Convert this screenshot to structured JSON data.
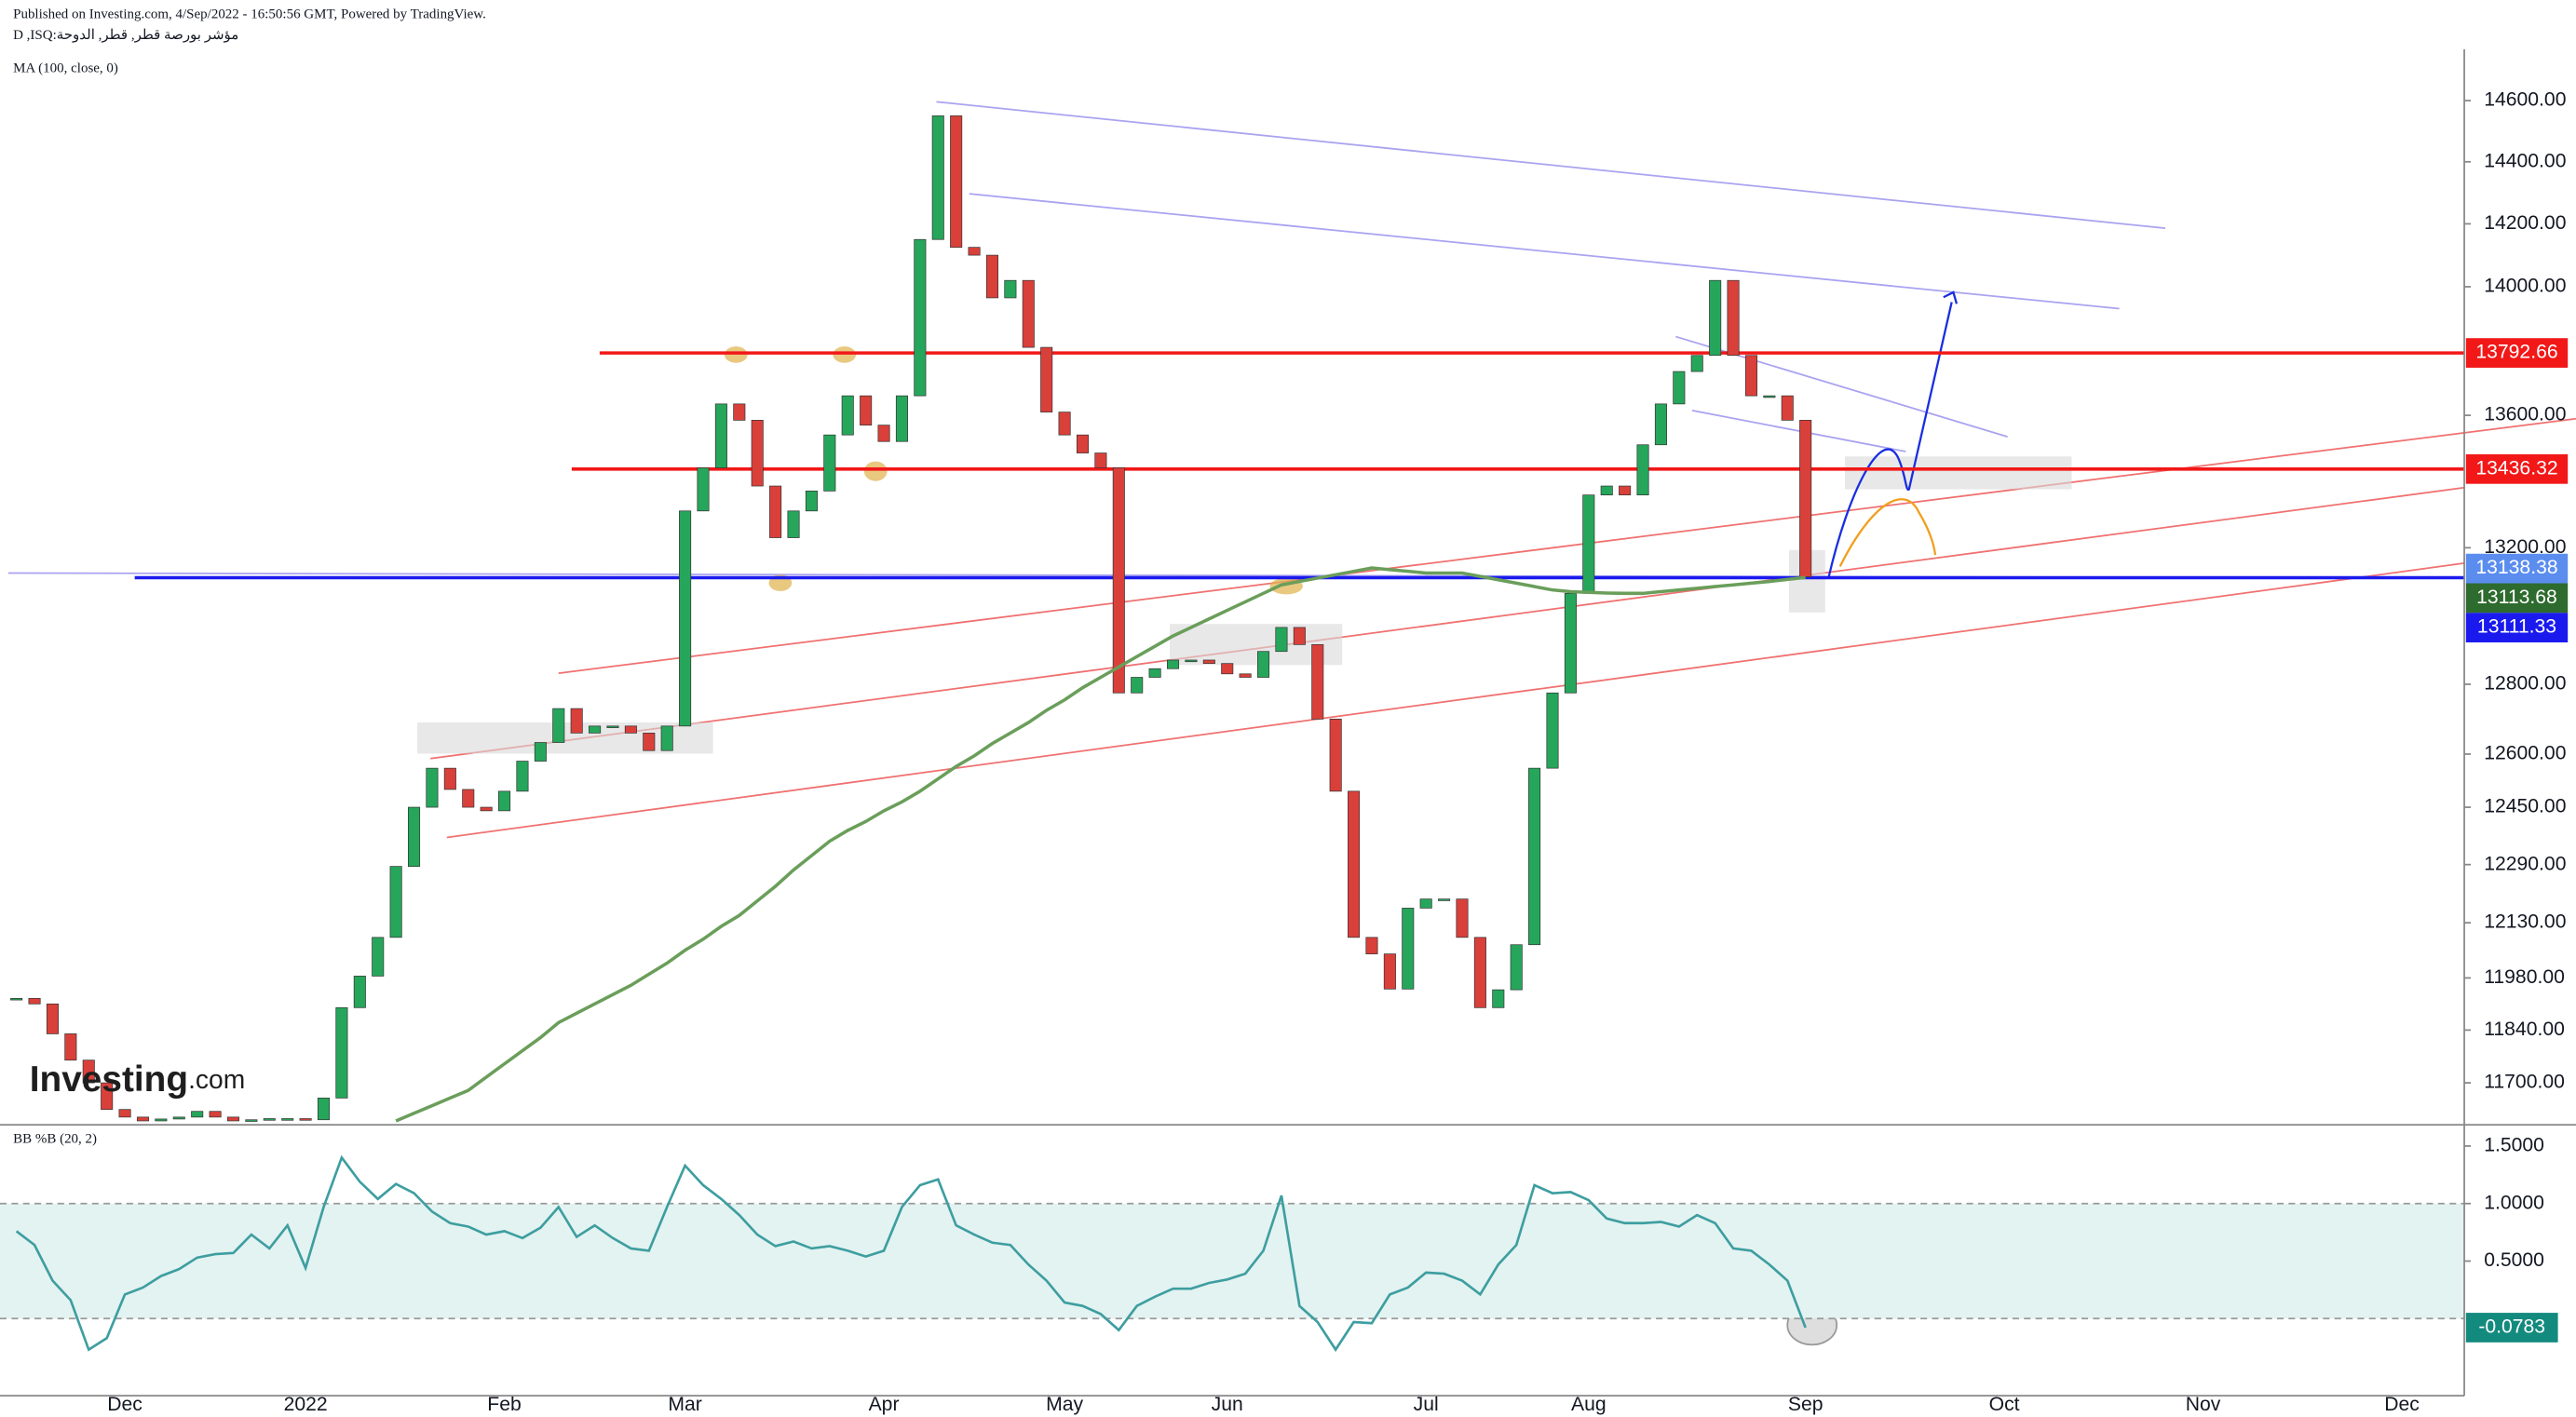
{
  "header": {
    "published": "Published on Investing.com, 4/Sep/2022 - 16:50:56 GMT, Powered by TradingView.",
    "symbol": "D ,ISQ:مؤشر بورصة قطر, قطر, الدوحة"
  },
  "logo": [
    "Investing",
    ".com"
  ],
  "chart_data": [
    {
      "type": "candlestick",
      "log": true,
      "up_color": "#26a65b",
      "down_color": "#d9403a",
      "categories": [
        null,
        null,
        null,
        null,
        null,
        null,
        "Dec",
        null,
        null,
        null,
        null,
        null,
        null,
        null,
        null,
        null,
        "2022",
        null,
        null,
        null,
        null,
        null,
        null,
        null,
        null,
        null,
        null,
        "Feb",
        null,
        null,
        null,
        null,
        null,
        null,
        null,
        null,
        null,
        "Mar",
        null,
        null,
        null,
        null,
        null,
        null,
        null,
        null,
        null,
        null,
        "Apr",
        null,
        null,
        null,
        null,
        null,
        null,
        null,
        null,
        null,
        "May",
        null,
        null,
        null,
        null,
        null,
        null,
        null,
        null,
        "Jun",
        null,
        null,
        null,
        null,
        null,
        null,
        null,
        null,
        null,
        null,
        "Jul",
        null,
        null,
        null,
        null,
        null,
        null,
        null,
        null,
        "Aug",
        null,
        null,
        null,
        null,
        null,
        null,
        null,
        null,
        null,
        null,
        null,
        "Sep",
        null,
        null,
        null,
        null,
        null,
        null,
        null,
        null,
        null,
        null,
        "Oct",
        null,
        null,
        null,
        null,
        null,
        null,
        null,
        null,
        null,
        null,
        "Nov",
        null,
        null,
        null,
        null,
        null,
        null,
        null,
        null,
        null,
        null,
        "Dec",
        null,
        null,
        null
      ],
      "values": [
        11925,
        11910,
        11830,
        11760,
        11700,
        11630,
        11610,
        11600,
        11605,
        11610,
        11625,
        11610,
        11600,
        11603,
        11606,
        11606,
        11603,
        11660,
        11900,
        11985,
        12090,
        12285,
        12450,
        12560,
        12500,
        12450,
        12440,
        12495,
        12580,
        12633,
        12730,
        12660,
        12680,
        12680,
        12660,
        12610,
        12680,
        13310,
        13440,
        13635,
        13585,
        13385,
        13230,
        13310,
        13370,
        13540,
        13660,
        13570,
        13520,
        13660,
        14150,
        14550,
        14125,
        14100,
        13965,
        14020,
        13810,
        13610,
        13540,
        13485,
        13440,
        12775,
        12820,
        12845,
        12870,
        12870,
        12860,
        12830,
        12820,
        12895,
        12965,
        12915,
        12700,
        12495,
        12090,
        12045,
        11950,
        12170,
        12195,
        12195,
        12090,
        11900,
        11948,
        12070,
        12560,
        12775,
        13065,
        13358,
        13385,
        13358,
        13510,
        13635,
        13735,
        13785,
        14020,
        13785,
        13660,
        13660,
        13585,
        13113.68,
        null,
        null,
        null,
        null,
        null,
        null,
        null,
        null,
        null,
        null,
        null,
        null,
        null,
        null,
        null,
        null,
        null,
        null,
        null,
        null,
        null,
        null,
        null,
        null,
        null,
        null,
        null,
        null,
        null,
        null,
        null,
        null,
        null,
        null,
        null,
        null
      ],
      "series": [
        {
          "name": "MA (100, close, 0)",
          "color": "#6a9e5a",
          "values": [
            null,
            null,
            null,
            null,
            null,
            null,
            null,
            null,
            null,
            null,
            null,
            null,
            null,
            null,
            null,
            null,
            null,
            null,
            null,
            null,
            null,
            11600,
            11620,
            11640,
            11660,
            11680,
            11715,
            11750,
            11785,
            11820,
            11860,
            11885,
            11910,
            11935,
            11960,
            11990,
            12020,
            12055,
            12085,
            12120,
            12150,
            12190,
            12230,
            12275,
            12315,
            12355,
            12385,
            12410,
            12440,
            12465,
            12495,
            12530,
            12565,
            12595,
            12630,
            12660,
            12690,
            12725,
            12755,
            12790,
            12820,
            12850,
            12880,
            12910,
            12940,
            12965,
            12990,
            13015,
            13040,
            13065,
            13090,
            13100,
            13110,
            13120,
            13130,
            13140,
            13135,
            13130,
            13125,
            13125,
            13125,
            13115,
            13105,
            13095,
            13085,
            13075,
            13070,
            13068,
            13066,
            13065,
            13065,
            13070,
            13075,
            13080,
            13085,
            13090,
            13095,
            13100,
            13106,
            13112,
            null,
            null,
            null,
            null,
            null,
            null,
            null,
            null,
            null,
            null,
            null,
            null,
            null,
            null,
            null,
            null,
            null,
            null,
            null,
            null,
            null,
            null,
            null,
            null,
            null,
            null,
            null,
            null,
            null,
            null,
            null,
            null,
            null,
            null,
            null,
            null
          ]
        }
      ],
      "ylim": [
        11590,
        14770
      ],
      "yticks": [
        {
          "value": 14600,
          "label": "14600.00"
        },
        {
          "value": 14400,
          "label": "14400.00"
        },
        {
          "value": 14200,
          "label": "14200.00"
        },
        {
          "value": 14000,
          "label": "14000.00"
        },
        {
          "value": 13600,
          "label": "13600.00"
        },
        {
          "value": 13200,
          "label": "13200.00"
        },
        {
          "value": 12800,
          "label": "12800.00"
        },
        {
          "value": 12600,
          "label": "12600.00"
        },
        {
          "value": 12450,
          "label": "12450.00"
        },
        {
          "value": 12290,
          "label": "12290.00"
        },
        {
          "value": 12130,
          "label": "12130.00"
        },
        {
          "value": 11980,
          "label": "11980.00"
        },
        {
          "value": 11840,
          "label": "11840.00"
        },
        {
          "value": 11700,
          "label": "11700.00"
        }
      ],
      "levels": [
        {
          "value": 13792.66,
          "color": "#f21818"
        },
        {
          "value": 13436.32,
          "color": "#f21818"
        },
        {
          "value": 13111.33,
          "color": "#1a1aee"
        }
      ],
      "price_labels": [
        {
          "value": 13138.38,
          "color": "#5b8def"
        }
      ],
      "last_color": "#2e6b2e"
    },
    {
      "type": "line",
      "title": "BB %B (20, 2)",
      "color": "#3e9ea0",
      "band": [
        0,
        1
      ],
      "band_color": "#e3f3f1",
      "values": [
        0.76,
        0.64,
        0.33,
        0.16,
        -0.27,
        -0.17,
        0.21,
        0.27,
        0.37,
        0.43,
        0.53,
        0.56,
        0.57,
        0.73,
        0.61,
        0.81,
        0.44,
        0.97,
        1.4,
        1.19,
        1.04,
        1.17,
        1.09,
        0.93,
        0.83,
        0.8,
        0.73,
        0.76,
        0.7,
        0.79,
        0.97,
        0.71,
        0.81,
        0.7,
        0.61,
        0.59,
        0.97,
        1.33,
        1.16,
        1.04,
        0.9,
        0.73,
        0.63,
        0.67,
        0.61,
        0.63,
        0.59,
        0.54,
        0.59,
        0.97,
        1.16,
        1.21,
        0.81,
        0.73,
        0.66,
        0.64,
        0.47,
        0.33,
        0.14,
        0.11,
        0.04,
        -0.1,
        0.11,
        0.19,
        0.26,
        0.26,
        0.31,
        0.34,
        0.39,
        0.59,
        1.07,
        0.11,
        -0.03,
        -0.27,
        -0.03,
        -0.04,
        0.21,
        0.27,
        0.4,
        0.39,
        0.33,
        0.21,
        0.47,
        0.64,
        1.16,
        1.09,
        1.1,
        1.03,
        0.87,
        0.83,
        0.83,
        0.84,
        0.8,
        0.9,
        0.83,
        0.61,
        0.59,
        0.47,
        0.33,
        -0.0783,
        null,
        null,
        null,
        null,
        null,
        null,
        null,
        null,
        null,
        null,
        null,
        null,
        null,
        null,
        null,
        null,
        null,
        null,
        null,
        null,
        null,
        null,
        null,
        null,
        null,
        null,
        null,
        null,
        null,
        null,
        null,
        null,
        null,
        null,
        null,
        null
      ],
      "ylim": [
        -0.67,
        1.614
      ],
      "yticks": [
        {
          "value": 1.5,
          "label": "1.5000"
        },
        {
          "value": 1,
          "label": "1.0000"
        },
        {
          "value": 0.5,
          "label": "0.5000"
        }
      ]
    }
  ]
}
